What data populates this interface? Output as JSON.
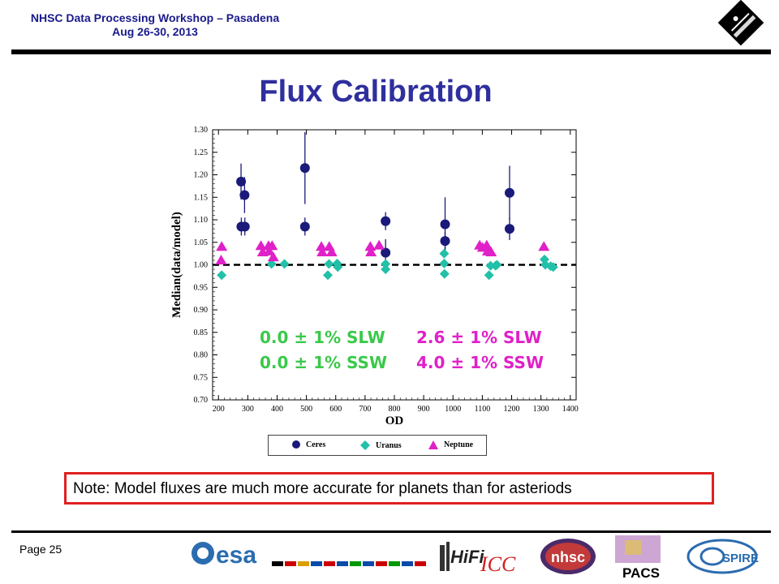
{
  "header": {
    "line1": "NHSC Data Processing Workshop – Pasadena",
    "line2": "Aug 26-30, 2013"
  },
  "title": "Flux Calibration",
  "chart_data": {
    "type": "scatter",
    "xlabel": "OD",
    "ylabel": "Median(data/model)",
    "xlim": [
      180,
      1420
    ],
    "ylim": [
      0.7,
      1.3
    ],
    "xticks": [
      200,
      300,
      400,
      500,
      600,
      700,
      800,
      900,
      1000,
      1100,
      1200,
      1300,
      1400
    ],
    "yticks": [
      0.7,
      0.75,
      0.8,
      0.85,
      0.9,
      0.95,
      1.0,
      1.05,
      1.1,
      1.15,
      1.2,
      1.25,
      1.3
    ],
    "reference_line": 1.0,
    "series": [
      {
        "name": "Ceres",
        "color": "#1a1a7a",
        "marker": "circle",
        "points": [
          {
            "x": 277,
            "y": 1.185,
            "err": 0.04
          },
          {
            "x": 278,
            "y": 1.085,
            "err": 0.02
          },
          {
            "x": 289,
            "y": 1.155,
            "err": 0.04
          },
          {
            "x": 290,
            "y": 1.085,
            "err": 0.02
          },
          {
            "x": 495,
            "y": 1.215,
            "err": 0.08
          },
          {
            "x": 495,
            "y": 1.085,
            "err": 0.02
          },
          {
            "x": 770,
            "y": 1.097,
            "err": 0.02
          },
          {
            "x": 770,
            "y": 1.027,
            "err": 0.03
          },
          {
            "x": 973,
            "y": 1.09,
            "err": 0.06
          },
          {
            "x": 973,
            "y": 1.053,
            "err": 0.02
          },
          {
            "x": 1193,
            "y": 1.16,
            "err": 0.06
          },
          {
            "x": 1193,
            "y": 1.08,
            "err": 0.025
          }
        ]
      },
      {
        "name": "Uranus",
        "color": "#22c0a8",
        "marker": "diamond",
        "points": [
          {
            "x": 211,
            "y": 0.977
          },
          {
            "x": 381,
            "y": 1.002
          },
          {
            "x": 425,
            "y": 1.002
          },
          {
            "x": 573,
            "y": 0.977
          },
          {
            "x": 577,
            "y": 1.002
          },
          {
            "x": 605,
            "y": 1.003
          },
          {
            "x": 607,
            "y": 0.995
          },
          {
            "x": 770,
            "y": 0.99
          },
          {
            "x": 770,
            "y": 1.002
          },
          {
            "x": 970,
            "y": 1.025
          },
          {
            "x": 970,
            "y": 1.003
          },
          {
            "x": 971,
            "y": 0.98
          },
          {
            "x": 1123,
            "y": 0.977
          },
          {
            "x": 1128,
            "y": 0.998
          },
          {
            "x": 1145,
            "y": 0.998
          },
          {
            "x": 1150,
            "y": 1.0
          },
          {
            "x": 1312,
            "y": 1.012
          },
          {
            "x": 1315,
            "y": 1.0
          },
          {
            "x": 1333,
            "y": 0.997
          },
          {
            "x": 1342,
            "y": 0.995
          }
        ]
      },
      {
        "name": "Neptune",
        "color": "#e020c8",
        "marker": "triangle",
        "points": [
          {
            "x": 211,
            "y": 1.04
          },
          {
            "x": 209,
            "y": 1.01
          },
          {
            "x": 345,
            "y": 1.042
          },
          {
            "x": 351,
            "y": 1.028
          },
          {
            "x": 371,
            "y": 1.042
          },
          {
            "x": 373,
            "y": 1.03
          },
          {
            "x": 383,
            "y": 1.042
          },
          {
            "x": 387,
            "y": 1.017
          },
          {
            "x": 551,
            "y": 1.04
          },
          {
            "x": 554,
            "y": 1.028
          },
          {
            "x": 578,
            "y": 1.04
          },
          {
            "x": 586,
            "y": 1.028
          },
          {
            "x": 718,
            "y": 1.04
          },
          {
            "x": 720,
            "y": 1.028
          },
          {
            "x": 748,
            "y": 1.043
          },
          {
            "x": 1091,
            "y": 1.043
          },
          {
            "x": 1101,
            "y": 1.038
          },
          {
            "x": 1115,
            "y": 1.043
          },
          {
            "x": 1118,
            "y": 1.03
          },
          {
            "x": 1130,
            "y": 1.028
          },
          {
            "x": 1310,
            "y": 1.04
          }
        ]
      }
    ],
    "annotations": [
      {
        "text": "0.0 ± 1% SLW",
        "color": "#3ac94a"
      },
      {
        "text": "0.0 ± 1% SSW",
        "color": "#3ac94a"
      },
      {
        "text": "2.6 ± 1% SLW",
        "color": "#e020c8"
      },
      {
        "text": "4.0 ± 1% SSW",
        "color": "#e020c8"
      }
    ]
  },
  "legend": {
    "ceres": "Ceres",
    "uranus": "Uranus",
    "neptune": "Neptune"
  },
  "note": "Note: Model fluxes are much more accurate for planets than for asteriods",
  "footer": {
    "page": "Page 25",
    "logos": {
      "esa": "esa",
      "hifi": "HiFi",
      "icc": "ICC",
      "nhsc": "nhsc",
      "pacs": "PACS",
      "spire": "SPIRE"
    }
  }
}
